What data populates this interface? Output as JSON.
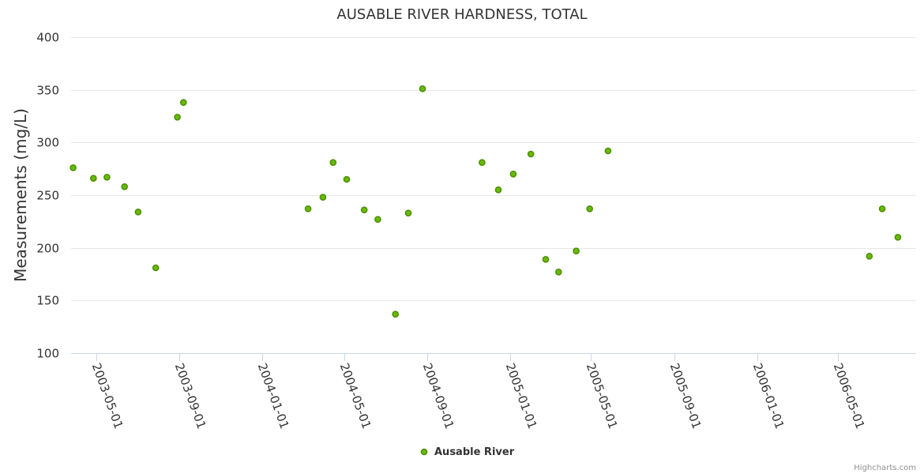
{
  "credits": "Highcharts.com",
  "chart_data": {
    "type": "scatter",
    "title": "AUSABLE RIVER HARDNESS, TOTAL",
    "xlabel": "",
    "ylabel": "Measurements (mg/L)",
    "ylim": [
      100,
      400
    ],
    "yticks": [
      100,
      150,
      200,
      250,
      300,
      350,
      400
    ],
    "xlim": [
      "2003-03-25",
      "2006-08-24"
    ],
    "xticks": [
      "2003-05-01",
      "2003-09-01",
      "2004-01-01",
      "2004-05-01",
      "2004-09-01",
      "2005-01-01",
      "2005-05-01",
      "2005-09-01",
      "2006-01-01",
      "2006-05-01"
    ],
    "grid": true,
    "legend_position": "bottom-center",
    "series": [
      {
        "name": "Ausable River",
        "color": "#66bb00",
        "marker_border": "#4a8a00",
        "points": [
          {
            "x": "2003-03-28",
            "y": 276
          },
          {
            "x": "2003-04-27",
            "y": 266
          },
          {
            "x": "2003-05-17",
            "y": 267
          },
          {
            "x": "2003-06-12",
            "y": 258
          },
          {
            "x": "2003-07-02",
            "y": 234
          },
          {
            "x": "2003-07-28",
            "y": 181
          },
          {
            "x": "2003-08-29",
            "y": 324
          },
          {
            "x": "2003-09-07",
            "y": 338
          },
          {
            "x": "2004-03-09",
            "y": 237
          },
          {
            "x": "2004-03-31",
            "y": 248
          },
          {
            "x": "2004-04-15",
            "y": 281
          },
          {
            "x": "2004-05-05",
            "y": 265
          },
          {
            "x": "2004-05-31",
            "y": 236
          },
          {
            "x": "2004-06-20",
            "y": 227
          },
          {
            "x": "2004-07-16",
            "y": 137
          },
          {
            "x": "2004-08-04",
            "y": 233
          },
          {
            "x": "2004-08-25",
            "y": 351
          },
          {
            "x": "2004-11-21",
            "y": 281
          },
          {
            "x": "2004-12-15",
            "y": 255
          },
          {
            "x": "2005-01-06",
            "y": 270
          },
          {
            "x": "2005-02-01",
            "y": 289
          },
          {
            "x": "2005-02-23",
            "y": 189
          },
          {
            "x": "2005-03-14",
            "y": 177
          },
          {
            "x": "2005-04-09",
            "y": 197
          },
          {
            "x": "2005-04-29",
            "y": 237
          },
          {
            "x": "2005-05-26",
            "y": 292
          },
          {
            "x": "2006-06-16",
            "y": 192
          },
          {
            "x": "2006-07-05",
            "y": 237
          },
          {
            "x": "2006-07-28",
            "y": 210
          }
        ]
      }
    ]
  }
}
